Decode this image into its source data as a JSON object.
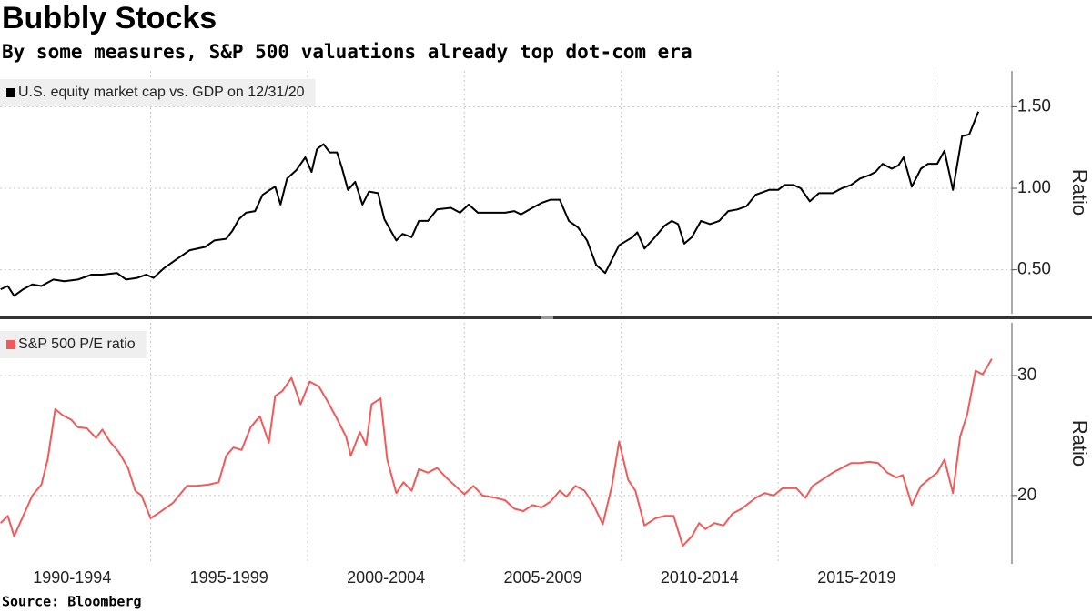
{
  "title": "Bubbly Stocks",
  "subtitle": "By some measures, S&P 500 valuations already top dot-com era",
  "source": "Source: Bloomberg",
  "chart_data": [
    {
      "type": "line",
      "y_label": "Ratio",
      "x": [
        1990.22,
        1990.45,
        1990.65,
        1990.94,
        1991.23,
        1991.52,
        1991.9,
        1992.25,
        1992.68,
        1993.12,
        1993.46,
        1993.93,
        1994.22,
        1994.57,
        1994.86,
        1995.09,
        1995.43,
        1995.87,
        1996.25,
        1996.74,
        1997.03,
        1997.41,
        1997.61,
        1997.81,
        1998.04,
        1998.33,
        1998.57,
        1998.8,
        1998.97,
        1999.14,
        1999.35,
        1999.64,
        1999.93,
        2000.13,
        2000.3,
        2000.51,
        2000.71,
        2000.94,
        2001.09,
        2001.29,
        2001.52,
        2001.75,
        2001.96,
        2002.25,
        2002.45,
        2002.83,
        2003.03,
        2003.32,
        2003.55,
        2003.84,
        2004.13,
        2004.57,
        2004.86,
        2005.14,
        2005.43,
        2005.87,
        2006.3,
        2006.59,
        2006.8,
        2007.17,
        2007.46,
        2007.75,
        2008.04,
        2008.33,
        2008.62,
        2008.91,
        2009.2,
        2009.49,
        2009.93,
        2010.36,
        2010.51,
        2010.74,
        2011.03,
        2011.38,
        2011.61,
        2011.81,
        2012.01,
        2012.25,
        2012.54,
        2012.83,
        2013.12,
        2013.41,
        2013.7,
        2013.99,
        2014.28,
        2014.71,
        2015,
        2015.2,
        2015.49,
        2015.72,
        2016.01,
        2016.3,
        2016.74,
        2017.03,
        2017.32,
        2017.61,
        2017.9,
        2018.1,
        2018.33,
        2018.62,
        2018.83,
        2019,
        2019.26,
        2019.55,
        2019.78,
        2020.07,
        2020.3,
        2020.57,
        2020.86,
        2021.09,
        2021.38
      ],
      "series": [
        {
          "name": "U.S. equity market cap vs. GDP on 12/31/20",
          "color": "#000000",
          "values": [
            0.38,
            0.4,
            0.34,
            0.38,
            0.41,
            0.4,
            0.44,
            0.43,
            0.44,
            0.47,
            0.47,
            0.48,
            0.44,
            0.45,
            0.47,
            0.45,
            0.51,
            0.57,
            0.62,
            0.64,
            0.68,
            0.69,
            0.74,
            0.81,
            0.85,
            0.86,
            0.96,
            0.99,
            1.01,
            0.9,
            1.06,
            1.11,
            1.19,
            1.1,
            1.24,
            1.27,
            1.22,
            1.22,
            1.13,
            0.99,
            1.04,
            0.9,
            0.98,
            0.97,
            0.81,
            0.68,
            0.72,
            0.7,
            0.8,
            0.8,
            0.87,
            0.88,
            0.85,
            0.9,
            0.85,
            0.85,
            0.85,
            0.86,
            0.84,
            0.88,
            0.91,
            0.93,
            0.93,
            0.8,
            0.76,
            0.68,
            0.53,
            0.48,
            0.65,
            0.7,
            0.73,
            0.63,
            0.69,
            0.77,
            0.8,
            0.78,
            0.66,
            0.7,
            0.8,
            0.78,
            0.8,
            0.86,
            0.87,
            0.89,
            0.96,
            0.99,
            0.99,
            1.02,
            1.02,
            1.0,
            0.92,
            0.97,
            0.97,
            1.0,
            1.02,
            1.06,
            1.08,
            1.1,
            1.15,
            1.12,
            1.14,
            1.19,
            1.01,
            1.12,
            1.15,
            1.15,
            1.23,
            0.99,
            1.32,
            1.33,
            1.47
          ]
        }
      ],
      "xlim": [
        1990.2,
        2022.45
      ],
      "xgrid": [
        1995,
        2000,
        2005,
        2010,
        2015,
        2020
      ],
      "ylim": [
        0.23,
        1.72
      ],
      "yticks": [
        {
          "value": 0.5,
          "label": "0.50"
        },
        {
          "value": 1.0,
          "label": "1.00"
        },
        {
          "value": 1.5,
          "label": "1.50"
        }
      ],
      "grid": true
    },
    {
      "type": "line",
      "y_label": "Ratio",
      "x": [
        1990.22,
        1990.45,
        1990.65,
        1990.94,
        1991.23,
        1991.52,
        1991.72,
        1991.96,
        1992.19,
        1992.48,
        1992.68,
        1992.97,
        1993.26,
        1993.46,
        1993.7,
        1993.99,
        1994.28,
        1994.51,
        1994.71,
        1995.0,
        1995.29,
        1995.72,
        1996.16,
        1996.45,
        1996.83,
        1997.17,
        1997.41,
        1997.64,
        1997.9,
        1998.19,
        1998.48,
        1998.77,
        1998.97,
        1999.2,
        1999.49,
        1999.78,
        2000.07,
        2000.36,
        2000.65,
        2000.94,
        2001.23,
        2001.38,
        2001.67,
        2001.87,
        2002.04,
        2002.33,
        2002.54,
        2002.83,
        2003.06,
        2003.32,
        2003.55,
        2003.84,
        2004.13,
        2004.42,
        2004.71,
        2005.0,
        2005.29,
        2005.58,
        2006.01,
        2006.3,
        2006.59,
        2006.88,
        2007.17,
        2007.46,
        2007.75,
        2008.04,
        2008.25,
        2008.54,
        2008.83,
        2009.12,
        2009.41,
        2009.7,
        2009.93,
        2010.22,
        2010.45,
        2010.74,
        2011.09,
        2011.38,
        2011.67,
        2011.96,
        2012.25,
        2012.48,
        2012.68,
        2012.97,
        2013.26,
        2013.55,
        2013.84,
        2014.28,
        2014.57,
        2014.86,
        2015.14,
        2015.58,
        2015.87,
        2016.1,
        2016.45,
        2016.74,
        2017.03,
        2017.32,
        2017.61,
        2017.9,
        2018.19,
        2018.48,
        2018.77,
        2018.97,
        2019.26,
        2019.55,
        2019.78,
        2020.07,
        2020.3,
        2020.57,
        2020.8,
        2021.03,
        2021.29,
        2021.52,
        2021.81
      ],
      "series": [
        {
          "name": "S&P 500 P/E ratio",
          "color": "#f25a5a",
          "values": [
            17.7,
            18.3,
            16.6,
            18.3,
            20.0,
            20.9,
            23.0,
            27.2,
            26.7,
            26.3,
            25.7,
            25.6,
            24.8,
            25.5,
            24.5,
            23.6,
            22.3,
            20.4,
            20.0,
            18.1,
            18.6,
            19.4,
            20.8,
            20.8,
            20.9,
            21.1,
            23.3,
            24.0,
            23.8,
            25.7,
            26.6,
            24.4,
            28.3,
            28.7,
            29.8,
            27.6,
            29.5,
            29.1,
            27.8,
            26.4,
            24.9,
            23.3,
            25.3,
            24.2,
            27.6,
            28.1,
            23.0,
            20.2,
            21.1,
            20.4,
            22.2,
            21.9,
            22.3,
            21.5,
            20.8,
            20.1,
            20.8,
            20.0,
            19.8,
            19.6,
            18.9,
            18.7,
            19.2,
            19.0,
            19.5,
            20.4,
            19.9,
            20.8,
            20.4,
            19.2,
            17.6,
            20.8,
            24.5,
            21.3,
            20.4,
            17.5,
            18.1,
            18.3,
            18.3,
            15.8,
            16.6,
            17.7,
            17.2,
            17.7,
            17.5,
            18.5,
            18.9,
            19.8,
            20.2,
            20.0,
            20.6,
            20.6,
            19.8,
            20.8,
            21.4,
            21.9,
            22.3,
            22.7,
            22.7,
            22.8,
            22.7,
            21.9,
            21.5,
            21.7,
            19.2,
            20.8,
            21.3,
            21.9,
            23.0,
            20.2,
            24.9,
            26.8,
            30.4,
            30.1,
            31.4
          ]
        }
      ],
      "xlim": [
        1990.2,
        2022.45
      ],
      "xgrid": [
        1995,
        2000,
        2005,
        2010,
        2015,
        2020
      ],
      "xticks": [
        {
          "value": 1992.5,
          "label": "1990-1994"
        },
        {
          "value": 1997.5,
          "label": "1995-1999"
        },
        {
          "value": 2002.5,
          "label": "2000-2004"
        },
        {
          "value": 2007.5,
          "label": "2005-2009"
        },
        {
          "value": 2012.5,
          "label": "2010-2014"
        },
        {
          "value": 2017.5,
          "label": "2015-2019"
        }
      ],
      "ylim": [
        14.3,
        34.4
      ],
      "yticks": [
        20,
        30
      ],
      "grid": true
    }
  ]
}
